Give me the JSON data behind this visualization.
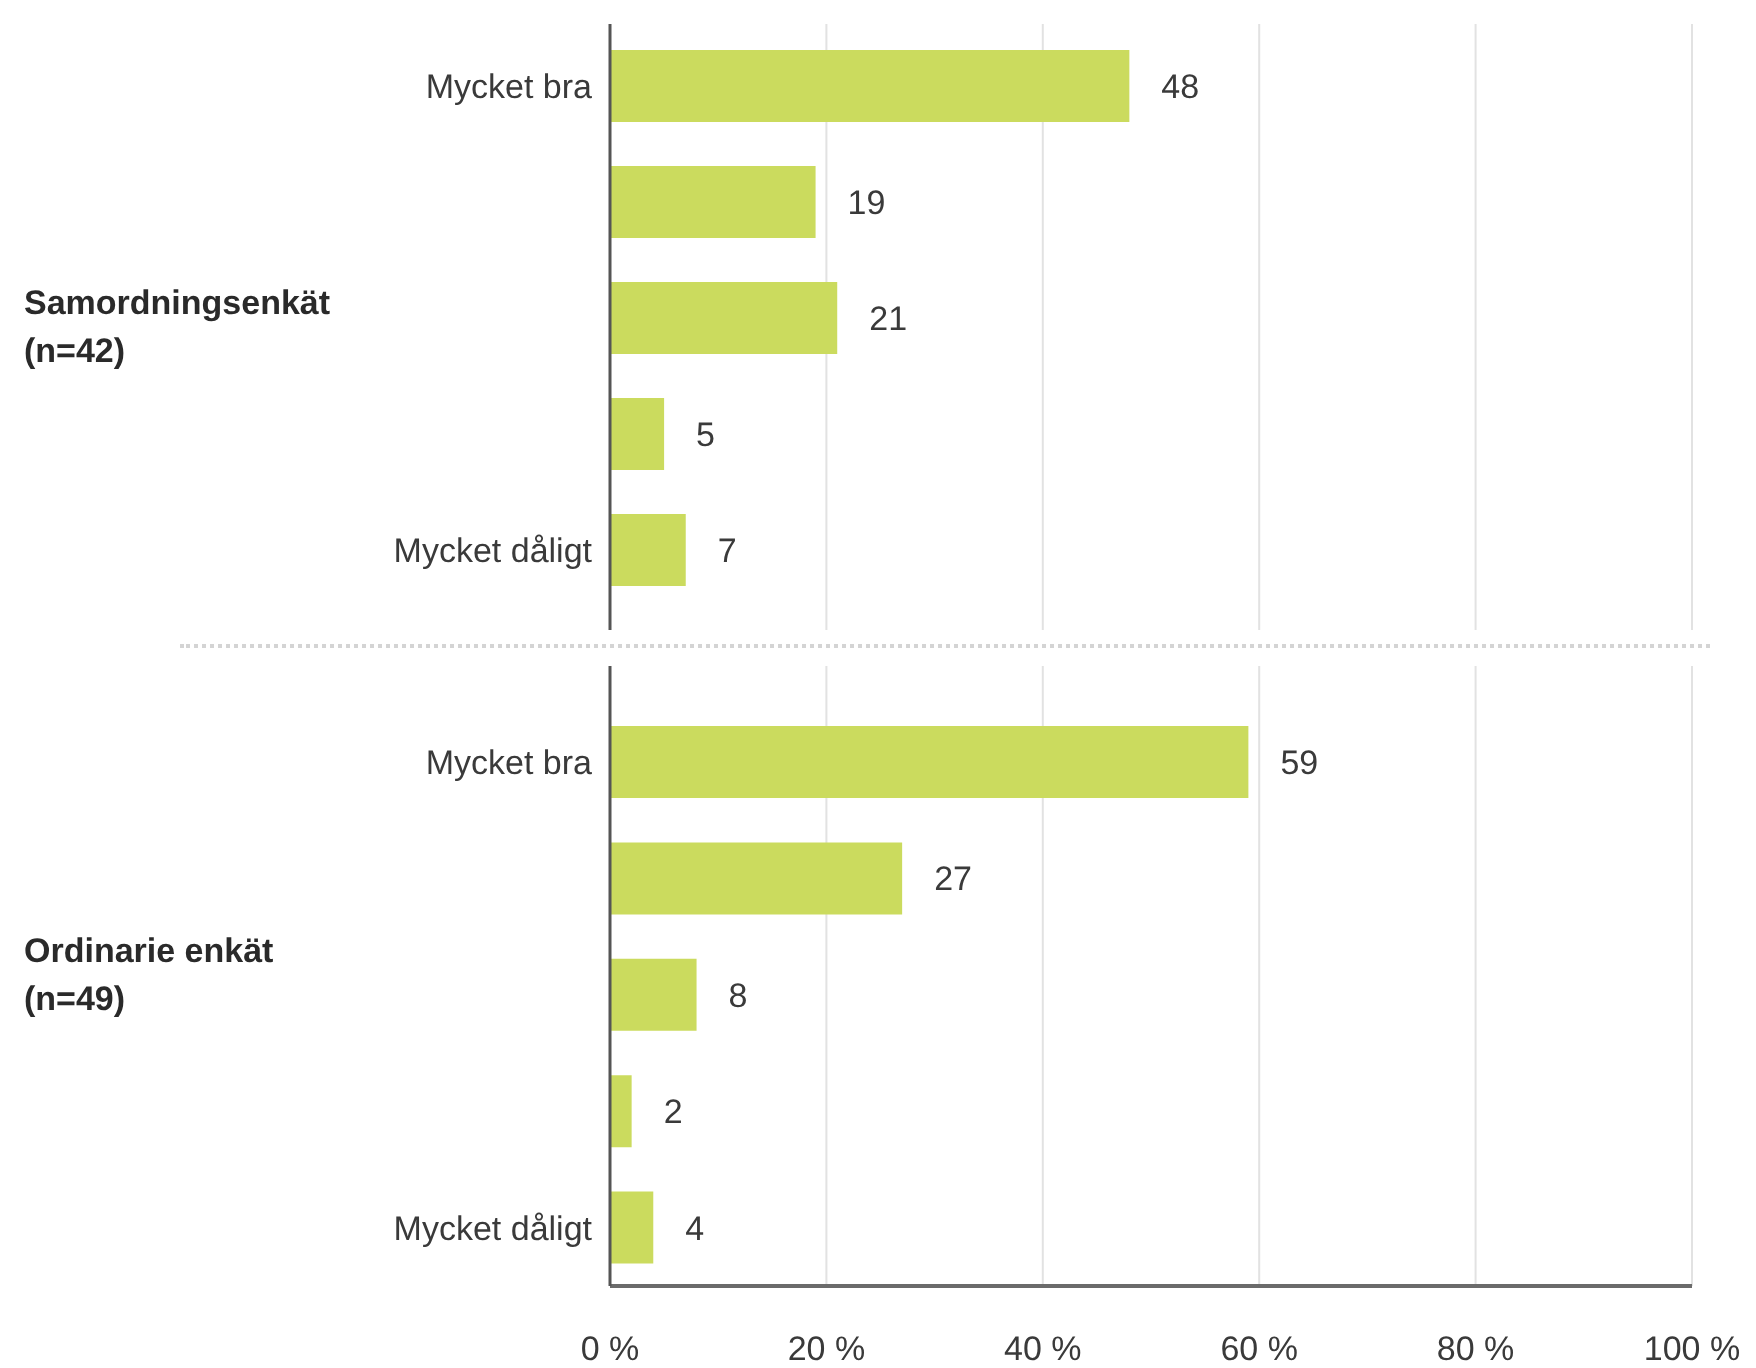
{
  "chart_data": [
    {
      "type": "bar",
      "orientation": "horizontal",
      "title": "Samordningsenkät (n=42)",
      "categories": [
        "Mycket bra",
        null,
        null,
        null,
        "Mycket dåligt"
      ],
      "values": [
        48,
        19,
        21,
        5,
        7
      ],
      "color": "#cbdb5e",
      "xlim": [
        0,
        100
      ],
      "xticks": [
        0,
        20,
        40,
        60,
        80,
        100
      ],
      "grid": "x",
      "data_labels": true,
      "tick_labels": "y"
    },
    {
      "type": "bar",
      "orientation": "horizontal",
      "title": "Ordinarie enkät (n=49)",
      "categories": [
        "Mycket bra",
        null,
        null,
        null,
        "Mycket dåligt"
      ],
      "values": [
        59,
        27,
        8,
        2,
        4
      ],
      "color": "#cbdb5e",
      "xlim": [
        0,
        100
      ],
      "xticks": [
        {
          "value": 0,
          "label": "0 %"
        },
        {
          "value": 20,
          "label": "20 %"
        },
        {
          "value": 40,
          "label": "40 %"
        },
        {
          "value": 60,
          "label": "60 %"
        },
        {
          "value": 80,
          "label": "80 %"
        },
        {
          "value": 100,
          "label": "100 %"
        }
      ],
      "grid": "x",
      "data_labels": true
    }
  ]
}
